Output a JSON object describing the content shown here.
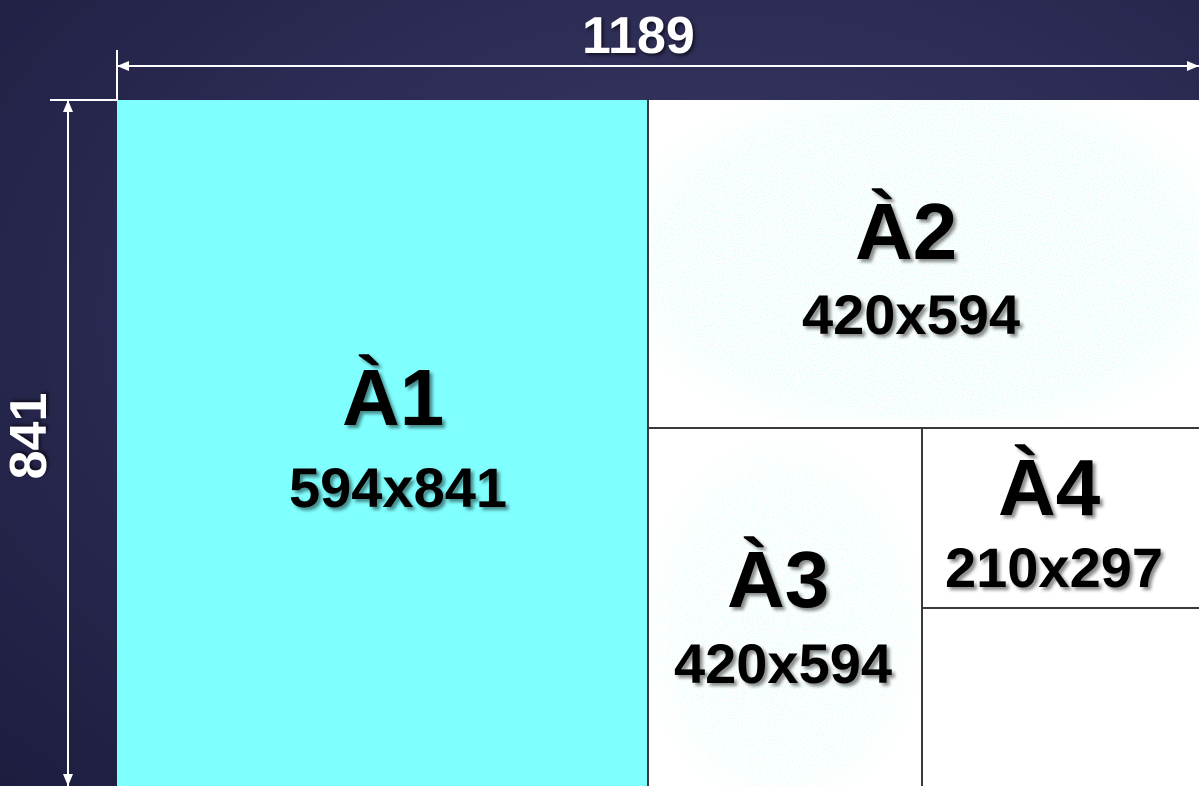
{
  "dimensions": {
    "width_label": "1189",
    "height_label": "841"
  },
  "sheets": [
    {
      "id": "a1",
      "name": "À1",
      "size": "594x841"
    },
    {
      "id": "a2",
      "name": "À2",
      "size": "420x594"
    },
    {
      "id": "a3",
      "name": "À3",
      "size": "420x594"
    },
    {
      "id": "a4",
      "name": "À4",
      "size": "210x297"
    }
  ],
  "colors": {
    "background": "#2a2a52",
    "a1_fill": "#80ffff",
    "speckle": "#9ff0f0",
    "paper": "#ffffff",
    "divider": "#3a3a3a",
    "dimension_line": "#ffffff"
  }
}
